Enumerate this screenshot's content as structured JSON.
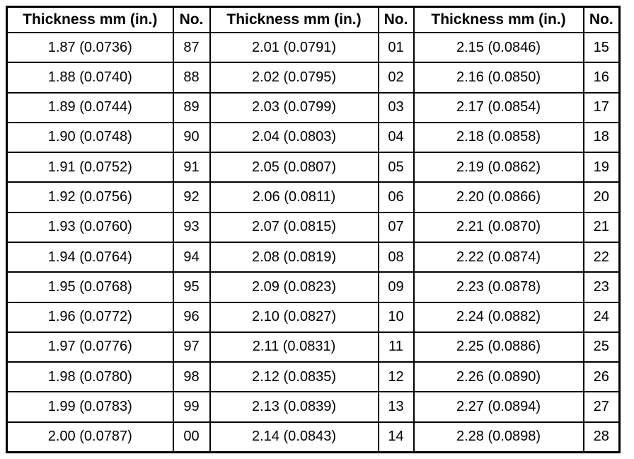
{
  "table": {
    "header": [
      "Thickness mm (in.)",
      "No.",
      "Thickness mm (in.)",
      "No.",
      "Thickness mm (in.)",
      "No."
    ],
    "rows": [
      [
        "1.87 (0.0736)",
        "87",
        "2.01 (0.0791)",
        "01",
        "2.15 (0.0846)",
        "15"
      ],
      [
        "1.88 (0.0740)",
        "88",
        "2.02 (0.0795)",
        "02",
        "2.16 (0.0850)",
        "16"
      ],
      [
        "1.89 (0.0744)",
        "89",
        "2.03 (0.0799)",
        "03",
        "2.17 (0.0854)",
        "17"
      ],
      [
        "1.90 (0.0748)",
        "90",
        "2.04 (0.0803)",
        "04",
        "2.18 (0.0858)",
        "18"
      ],
      [
        "1.91 (0.0752)",
        "91",
        "2.05 (0.0807)",
        "05",
        "2.19 (0.0862)",
        "19"
      ],
      [
        "1.92 (0.0756)",
        "92",
        "2.06 (0.0811)",
        "06",
        "2.20 (0.0866)",
        "20"
      ],
      [
        "1.93 (0.0760)",
        "93",
        "2.07 (0.0815)",
        "07",
        "2.21 (0.0870)",
        "21"
      ],
      [
        "1.94 (0.0764)",
        "94",
        "2.08 (0.0819)",
        "08",
        "2.22 (0.0874)",
        "22"
      ],
      [
        "1.95 (0.0768)",
        "95",
        "2.09 (0.0823)",
        "09",
        "2.23 (0.0878)",
        "23"
      ],
      [
        "1.96 (0.0772)",
        "96",
        "2.10 (0.0827)",
        "10",
        "2.24 (0.0882)",
        "24"
      ],
      [
        "1.97 (0.0776)",
        "97",
        "2.11 (0.0831)",
        "11",
        "2.25 (0.0886)",
        "25"
      ],
      [
        "1.98 (0.0780)",
        "98",
        "2.12 (0.0835)",
        "12",
        "2.26 (0.0890)",
        "26"
      ],
      [
        "1.99 (0.0783)",
        "99",
        "2.13 (0.0839)",
        "13",
        "2.27 (0.0894)",
        "27"
      ],
      [
        "2.00 (0.0787)",
        "00",
        "2.14 (0.0843)",
        "14",
        "2.28 (0.0898)",
        "28"
      ]
    ]
  }
}
